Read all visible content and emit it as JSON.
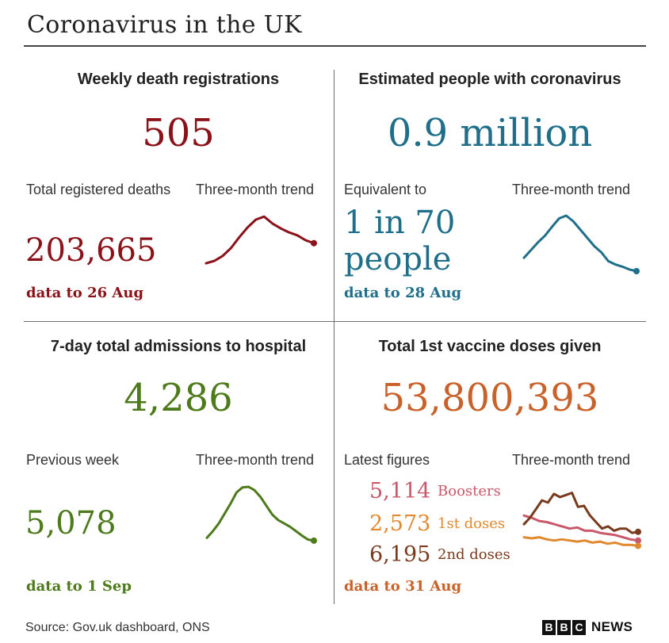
{
  "title": "Coronavirus in the UK",
  "source": "Source: Gov.uk dashboard, ONS",
  "logo": {
    "letters": [
      "B",
      "B",
      "C"
    ],
    "news": "NEWS"
  },
  "colors": {
    "deaths": "#8a1218",
    "estimated": "#1f6f8b",
    "hospital": "#4d7a1a",
    "vaccine": "#c8622a",
    "boosters": "#c9586a",
    "first_doses": "#e0892f",
    "second_doses": "#7a3a1d"
  },
  "panels": {
    "deaths": {
      "heading": "Weekly death registrations",
      "big_value": "505",
      "sub_label": "Total registered deaths",
      "sub_value": "203,665",
      "trend_label": "Three-month trend",
      "date": "data to 26 Aug"
    },
    "estimated": {
      "heading": "Estimated people with coronavirus",
      "big_value": "0.9 million",
      "sub_label": "Equivalent to",
      "sub_value_line1": "1 in 70",
      "sub_value_line2": "people",
      "trend_label": "Three-month trend",
      "date": "data to 28 Aug"
    },
    "hospital": {
      "heading": "7-day total admissions to hospital",
      "big_value": "4,286",
      "sub_label": "Previous week",
      "sub_value": "5,078",
      "trend_label": "Three-month trend",
      "date": "data to 1 Sep"
    },
    "vaccine": {
      "heading": "Total 1st vaccine doses given",
      "big_value": "53,800,393",
      "sub_label": "Latest figures",
      "trend_label": "Three-month trend",
      "latest": [
        {
          "value": "5,114",
          "label": "Boosters"
        },
        {
          "value": "2,573",
          "label": "1st doses"
        },
        {
          "value": "6,195",
          "label": "2nd doses"
        }
      ],
      "date": "data to 31 Aug"
    }
  },
  "chart_data": [
    {
      "type": "line",
      "title": "Weekly death registrations - three-month trend",
      "series": [
        {
          "values": [
            3,
            8,
            18,
            34,
            56,
            76,
            92,
            98,
            84,
            74,
            66,
            60,
            50,
            44
          ]
        }
      ],
      "ylim": [
        0,
        100
      ]
    },
    {
      "type": "line",
      "title": "Estimated people with coronavirus - three-month trend",
      "series": [
        {
          "values": [
            24,
            38,
            52,
            64,
            80,
            95,
            100,
            90,
            75,
            60,
            45,
            34,
            18,
            12,
            8,
            3,
            0
          ]
        }
      ],
      "ylim": [
        0,
        100
      ]
    },
    {
      "type": "line",
      "title": "7-day total admissions to hospital - three-month trend",
      "series": [
        {
          "values": [
            8,
            20,
            34,
            52,
            70,
            90,
            99,
            100,
            94,
            82,
            66,
            50,
            40,
            34,
            28,
            20,
            12,
            5,
            3
          ]
        }
      ],
      "ylim": [
        0,
        100
      ]
    },
    {
      "type": "line",
      "title": "Total 1st vaccine doses given - three-month trend",
      "series": [
        {
          "name": "Boosters",
          "values": [
            32,
            30,
            27,
            26,
            24,
            22,
            20,
            21,
            18,
            18,
            16,
            15,
            14,
            12,
            10,
            9
          ]
        },
        {
          "name": "1st doses",
          "values": [
            12,
            11,
            12,
            10,
            9,
            10,
            9,
            8,
            9,
            7,
            8,
            6,
            7,
            5,
            5,
            4
          ]
        },
        {
          "name": "2nd doses",
          "values": [
            24,
            30,
            38,
            46,
            44,
            52,
            49,
            51,
            53,
            40,
            41,
            32,
            26,
            20,
            22,
            18,
            20,
            20,
            16,
            17
          ]
        }
      ],
      "ylim": [
        0,
        60
      ]
    }
  ]
}
